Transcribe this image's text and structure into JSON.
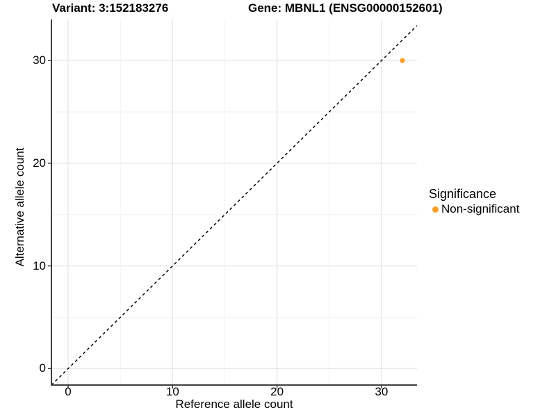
{
  "chart_data": {
    "type": "scatter",
    "title_left": "Variant: 3:152183276",
    "title_right": "Gene: MBNL1 (ENSG00000152601)",
    "xlabel": "Reference allele count",
    "ylabel": "Alternative allele count",
    "xlim": [
      -1.6,
      33.4
    ],
    "ylim": [
      -1.6,
      34.0
    ],
    "xticks": [
      0,
      10,
      20,
      30
    ],
    "yticks": [
      0,
      10,
      20,
      30
    ],
    "grid": true,
    "minor_grid": true,
    "identity_line": {
      "equation": "y = x",
      "style": "dashed",
      "color": "#000000"
    },
    "series": [
      {
        "name": "Non-significant",
        "color": "#FAA028",
        "points": [
          [
            32,
            30
          ]
        ]
      }
    ],
    "legend": {
      "title": "Significance",
      "position": "right",
      "entries": [
        {
          "label": "Non-significant",
          "color": "#FAA028"
        }
      ]
    },
    "colors": {
      "grid_major": "#E7E7E7",
      "grid_minor": "#F2F2F2",
      "axis_line": "#3F3F3F",
      "tick_mark": "#333333",
      "text": "#000000",
      "background": "#FFFFFF"
    }
  }
}
